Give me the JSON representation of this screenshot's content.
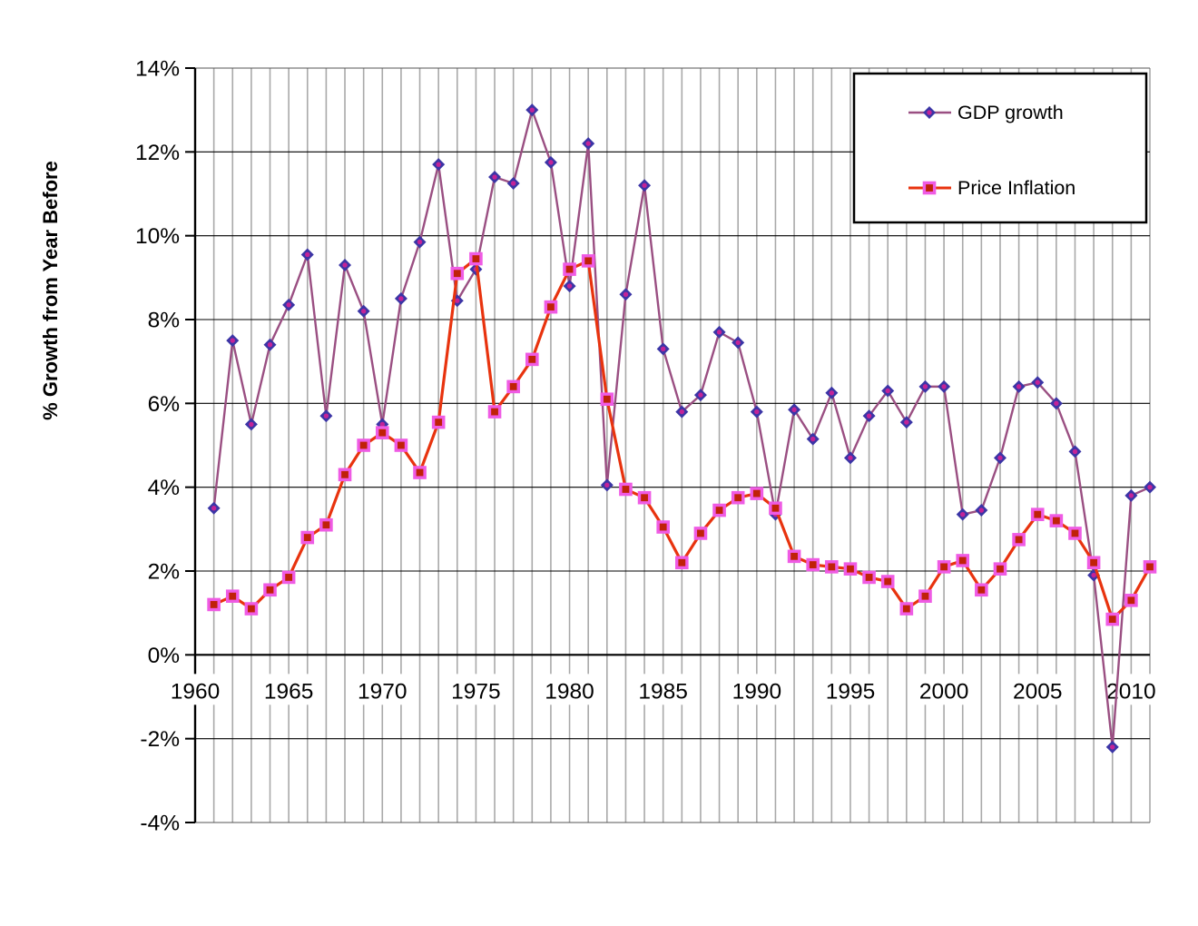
{
  "chart_data": {
    "type": "line",
    "title": "",
    "xlabel": "",
    "ylabel": "% Growth from Year Before",
    "xlim": [
      1960,
      2011
    ],
    "ylim": [
      -4,
      14
    ],
    "grid": {
      "vertical": "every year",
      "horizontal": "every 2%"
    },
    "legend_position": "top-right",
    "yticks": [
      {
        "value": 14,
        "label": "14%"
      },
      {
        "value": 12,
        "label": "12%"
      },
      {
        "value": 10,
        "label": "10%"
      },
      {
        "value": 8,
        "label": "8%"
      },
      {
        "value": 6,
        "label": "6%"
      },
      {
        "value": 4,
        "label": "4%"
      },
      {
        "value": 2,
        "label": "2%"
      },
      {
        "value": 0,
        "label": "0%"
      },
      {
        "value": -2,
        "label": "-2%"
      },
      {
        "value": -4,
        "label": "-4%"
      }
    ],
    "xticks": [
      {
        "value": 1960,
        "label": "1960"
      },
      {
        "value": 1965,
        "label": "1965"
      },
      {
        "value": 1970,
        "label": "1970"
      },
      {
        "value": 1975,
        "label": "1975"
      },
      {
        "value": 1980,
        "label": "1980"
      },
      {
        "value": 1985,
        "label": "1985"
      },
      {
        "value": 1990,
        "label": "1990"
      },
      {
        "value": 1995,
        "label": "1995"
      },
      {
        "value": 2000,
        "label": "2000"
      },
      {
        "value": 2005,
        "label": "2005"
      },
      {
        "value": 2010,
        "label": "2010"
      }
    ],
    "x": [
      1961,
      1962,
      1963,
      1964,
      1965,
      1966,
      1967,
      1968,
      1969,
      1970,
      1971,
      1972,
      1973,
      1974,
      1975,
      1976,
      1977,
      1978,
      1979,
      1980,
      1981,
      1982,
      1983,
      1984,
      1985,
      1986,
      1987,
      1988,
      1989,
      1990,
      1991,
      1992,
      1993,
      1994,
      1995,
      1996,
      1997,
      1998,
      1999,
      2000,
      2001,
      2002,
      2003,
      2004,
      2005,
      2006,
      2007,
      2008,
      2009,
      2010,
      2011
    ],
    "series": [
      {
        "name": "GDP growth",
        "marker": "diamond",
        "line_color": "#9a4f82",
        "marker_fill": "#3b35a6",
        "marker_center": "#c32397",
        "values": [
          3.5,
          7.5,
          5.5,
          7.4,
          8.35,
          9.55,
          5.7,
          9.3,
          8.2,
          5.5,
          8.5,
          9.85,
          11.7,
          8.45,
          9.2,
          11.4,
          11.25,
          13.0,
          11.75,
          8.8,
          12.2,
          4.05,
          8.6,
          11.2,
          7.3,
          5.8,
          6.2,
          7.7,
          7.45,
          5.8,
          3.35,
          5.85,
          5.15,
          6.25,
          4.7,
          5.7,
          6.3,
          5.55,
          6.4,
          6.4,
          3.35,
          3.45,
          4.7,
          6.4,
          6.5,
          6.0,
          4.85,
          1.9,
          -2.2,
          3.8,
          4.0
        ]
      },
      {
        "name": "Price Inflation",
        "marker": "square",
        "line_color": "#e8330e",
        "marker_fill": "#c02108",
        "marker_border": "#ef5be4",
        "values": [
          1.2,
          1.4,
          1.1,
          1.55,
          1.85,
          2.8,
          3.1,
          4.3,
          5.0,
          5.3,
          5.0,
          4.35,
          5.55,
          9.1,
          9.45,
          5.8,
          6.4,
          7.05,
          8.3,
          9.2,
          9.4,
          6.1,
          3.95,
          3.75,
          3.05,
          2.2,
          2.9,
          3.45,
          3.75,
          3.85,
          3.5,
          2.35,
          2.15,
          2.1,
          2.05,
          1.85,
          1.75,
          1.1,
          1.4,
          2.1,
          2.25,
          1.55,
          2.05,
          2.75,
          3.35,
          3.2,
          2.9,
          2.2,
          0.85,
          1.3,
          2.1
        ]
      }
    ],
    "colors": {
      "v_gridline": "#a9a9a9",
      "h_gridline": "#000000",
      "axis": "#000000",
      "plot_edge": "#555555",
      "legend_border": "#000000",
      "text": "#000000"
    }
  }
}
